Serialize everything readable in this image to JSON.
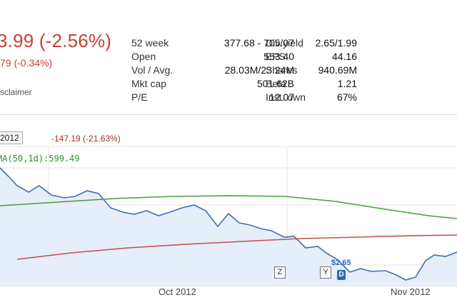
{
  "quote": {
    "price_change": "3.99 (-2.56%)",
    "after_hours_change": "79 (-0.34%)",
    "disclaimer": "sclaimer"
  },
  "stats": {
    "left": [
      {
        "label": "52 week",
        "value": "377.68 - 705.07"
      },
      {
        "label": "Open",
        "value": "553.40"
      },
      {
        "label": "Vol / Avg.",
        "value": "28.03M/23.24M"
      },
      {
        "label": "Mkt cap",
        "value": "501.62B"
      },
      {
        "label": "P/E",
        "value": "12.07"
      }
    ],
    "right": [
      {
        "label": "Div/yield",
        "value": "2.65/1.99"
      },
      {
        "label": "EPS",
        "value": "44.16"
      },
      {
        "label": "Shares",
        "value": "940.69M"
      },
      {
        "label": "Beta",
        "value": "1.21"
      },
      {
        "label": "Inst. own",
        "value": "67%"
      }
    ]
  },
  "chart": {
    "range_label": "2012",
    "range_change": "-147.19 (-21.63%)",
    "sma_label": "MA(50,1d):599.49",
    "x_ticks": [
      "Oct 2012",
      "Nov 2012"
    ],
    "markers": [
      {
        "letter": "Z"
      },
      {
        "letter": "Y"
      },
      {
        "letter": "D"
      }
    ],
    "dividend_amount": "$2.65",
    "colors": {
      "price_line": "#3f6fb5",
      "price_fill": "#e6eef9",
      "sma50": "#4b9a3e",
      "sma200": "#c0504d",
      "grid": "#e4e4e4"
    }
  }
}
